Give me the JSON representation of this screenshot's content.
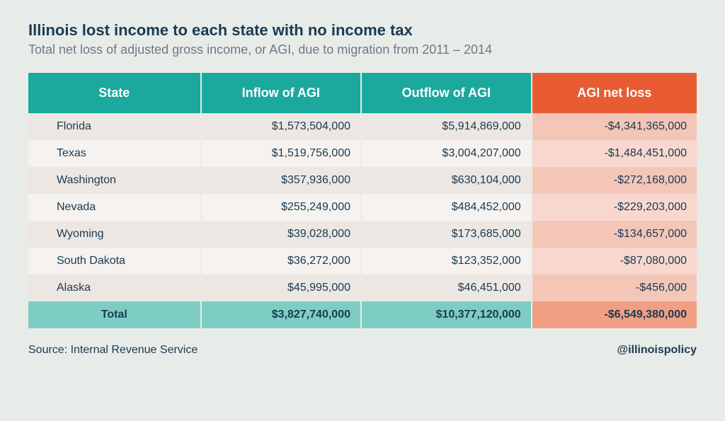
{
  "title": "Illinois lost income to each state with no income tax",
  "subtitle": "Total net loss of adjusted gross income, or AGI, due to migration from 2011 – 2014",
  "table": {
    "columns": [
      "State",
      "Inflow of AGI",
      "Outflow of AGI",
      "AGI net loss"
    ],
    "header_colors": [
      "#1aa99c",
      "#1aa99c",
      "#1aa99c",
      "#e95c33"
    ],
    "header_text_color": "#ffffff",
    "header_fontsize": 18,
    "col_align": [
      "left",
      "right",
      "right",
      "right"
    ],
    "row_stripe_colors": [
      "#ece7e3",
      "#f5f2ef"
    ],
    "netloss_stripe_colors": [
      "#f4c6b8",
      "#f8d8ce"
    ],
    "total_row_colors": [
      "#7ecdc3",
      "#7ecdc3",
      "#7ecdc3",
      "#f09f84"
    ],
    "cell_fontsize": 16,
    "rows": [
      {
        "state": "Florida",
        "inflow": "$1,573,504,000",
        "outflow": "$5,914,869,000",
        "netloss": "-$4,341,365,000"
      },
      {
        "state": "Texas",
        "inflow": "$1,519,756,000",
        "outflow": "$3,004,207,000",
        "netloss": "-$1,484,451,000"
      },
      {
        "state": "Washington",
        "inflow": "$357,936,000",
        "outflow": "$630,104,000",
        "netloss": "-$272,168,000"
      },
      {
        "state": "Nevada",
        "inflow": "$255,249,000",
        "outflow": "$484,452,000",
        "netloss": "-$229,203,000"
      },
      {
        "state": "Wyoming",
        "inflow": "$39,028,000",
        "outflow": "$173,685,000",
        "netloss": "-$134,657,000"
      },
      {
        "state": "South Dakota",
        "inflow": "$36,272,000",
        "outflow": "$123,352,000",
        "netloss": "-$87,080,000"
      },
      {
        "state": "Alaska",
        "inflow": "$45,995,000",
        "outflow": "$46,451,000",
        "netloss": "-$456,000"
      }
    ],
    "total": {
      "state": "Total",
      "inflow": "$3,827,740,000",
      "outflow": "$10,377,120,000",
      "netloss": "-$6,549,380,000"
    }
  },
  "source": "Source: Internal Revenue Service",
  "handle": "@illinoispolicy",
  "background_color": "#e8ece9",
  "text_color": "#1a3a52",
  "subtitle_color": "#6b7a85"
}
